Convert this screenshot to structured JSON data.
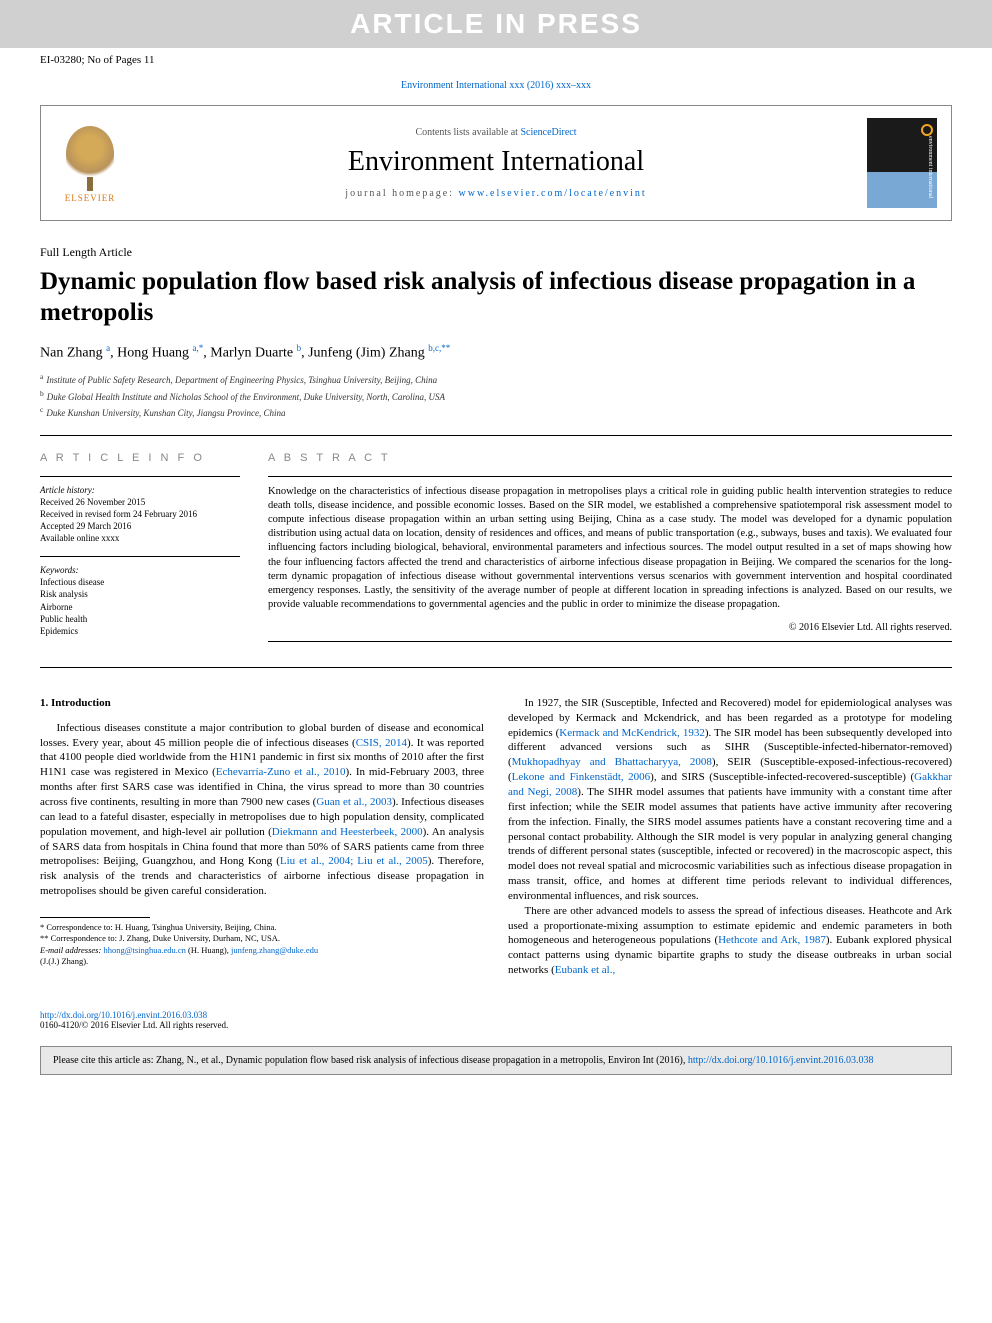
{
  "banner": "ARTICLE IN PRESS",
  "docId": "EI-03280; No of Pages 11",
  "journalRefTop": "Environment International xxx (2016) xxx–xxx",
  "header": {
    "contentsPrefix": "Contents lists available at ",
    "contentsLink": "ScienceDirect",
    "journalName": "Environment International",
    "homepagePrefix": "journal homepage: ",
    "homepageLink": "www.elsevier.com/locate/envint",
    "elsevier": "ELSEVIER",
    "coverText": "environment international"
  },
  "articleType": "Full Length Article",
  "title": "Dynamic population flow based risk analysis of infectious disease propagation in a metropolis",
  "authors": [
    {
      "name": "Nan Zhang ",
      "sup": "a"
    },
    {
      "name": ", Hong Huang ",
      "sup": "a,*"
    },
    {
      "name": ", Marlyn Duarte ",
      "sup": "b"
    },
    {
      "name": ", Junfeng (Jim) Zhang ",
      "sup": "b,c,**"
    }
  ],
  "affiliations": [
    {
      "sup": "a",
      "text": "Institute of Public Safety Research, Department of Engineering Physics, Tsinghua University, Beijing, China"
    },
    {
      "sup": "b",
      "text": "Duke Global Health Institute and Nicholas School of the Environment, Duke University, North, Carolina, USA"
    },
    {
      "sup": "c",
      "text": "Duke Kunshan University, Kunshan City, Jiangsu Province, China"
    }
  ],
  "info": {
    "heading": "A R T I C L E   I N F O",
    "historyHead": "Article history:",
    "history": [
      "Received 26 November 2015",
      "Received in revised form 24 February 2016",
      "Accepted 29 March 2016",
      "Available online xxxx"
    ],
    "keywordsHead": "Keywords:",
    "keywords": [
      "Infectious disease",
      "Risk analysis",
      "Airborne",
      "Public health",
      "Epidemics"
    ]
  },
  "abstract": {
    "heading": "A B S T R A C T",
    "text": "Knowledge on the characteristics of infectious disease propagation in metropolises plays a critical role in guiding public health intervention strategies to reduce death tolls, disease incidence, and possible economic losses. Based on the SIR model, we established a comprehensive spatiotemporal risk assessment model to compute infectious disease propagation within an urban setting using Beijing, China as a case study. The model was developed for a dynamic population distribution using actual data on location, density of residences and offices, and means of public transportation (e.g., subways, buses and taxis). We evaluated four influencing factors including biological, behavioral, environmental parameters and infectious sources. The model output resulted in a set of maps showing how the four influencing factors affected the trend and characteristics of airborne infectious disease propagation in Beijing. We compared the scenarios for the long-term dynamic propagation of infectious disease without governmental interventions versus scenarios with government intervention and hospital coordinated emergency responses. Lastly, the sensitivity of the average number of people at different location in spreading infections is analyzed. Based on our results, we provide valuable recommendations to governmental agencies and the public in order to minimize the disease propagation.",
    "copyright": "© 2016 Elsevier Ltd. All rights reserved."
  },
  "introHead": "1. Introduction",
  "col1": {
    "p1a": "Infectious diseases constitute a major contribution to global burden of disease and economical losses. Every year, about 45 million people die of infectious diseases (",
    "c1": "CSIS, 2014",
    "p1b": "). It was reported that 4100 people died worldwide from the H1N1 pandemic in first six months of 2010 after the first H1N1 case was registered in Mexico (",
    "c2": "Echevarría-Zuno et al., 2010",
    "p1c": "). In mid-February 2003, three months after first SARS case was identified in China, the virus spread to more than 30 countries across five continents, resulting in more than 7900 new cases (",
    "c3": "Guan et al., 2003",
    "p1d": "). Infectious diseases can lead to a fateful disaster, especially in metropolises due to high population density, complicated population movement, and high-level air pollution (",
    "c4": "Diekmann and Heesterbeek, 2000",
    "p1e": "). An analysis of SARS data from hospitals in China found that more than 50% of SARS patients came from three metropolises: Beijing, Guangzhou, and Hong Kong (",
    "c5": "Liu et al., 2004; Liu et al., 2005",
    "p1f": "). Therefore, risk analysis of the trends and characteristics of airborne infectious disease propagation in metropolises should be given careful consideration."
  },
  "footnotes": {
    "f1": "* Correspondence to: H. Huang, Tsinghua University, Beijing, China.",
    "f2": "** Correspondence to: J. Zhang, Duke University, Durham, NC, USA.",
    "f3pre": "E-mail addresses: ",
    "f3a": "hhong@tsinghua.edu.cn",
    "f3mid": " (H. Huang), ",
    "f3b": "junfeng.zhang@duke.edu",
    "f3post": " (J.(J.) Zhang)."
  },
  "col2": {
    "p1a": "In 1927, the SIR (Susceptible, Infected and Recovered) model for epidemiological analyses was developed by Kermack and Mckendrick, and has been regarded as a prototype for modeling epidemics (",
    "c1": "Kermack and McKendrick, 1932",
    "p1b": "). The SIR model has been subsequently developed into different advanced versions such as SIHR (Susceptible-infected-hibernator-removed) (",
    "c2": "Mukhopadhyay and Bhattacharyya, 2008",
    "p1c": "), SEIR (Susceptible-exposed-infectious-recovered) (",
    "c3": "Lekone and Finkenstädt, 2006",
    "p1d": "), and SIRS (Susceptible-infected-recovered-susceptible) (",
    "c4": "Gakkhar and Negi, 2008",
    "p1e": "). The SIHR model assumes that patients have immunity with a constant time after first infection; while the SEIR model assumes that patients have active immunity after recovering from the infection. Finally, the SIRS model assumes patients have a constant recovering time and a personal contact probability. Although the SIR model is very popular in analyzing general changing trends of different personal states (susceptible, infected or recovered) in the macroscopic aspect, this model does not reveal spatial and microcosmic variabilities such as infectious disease propagation in mass transit, office, and homes at different time periods relevant to individual differences, environmental influences, and risk sources.",
    "p2a": "There are other advanced models to assess the spread of infectious diseases. Heathcote and Ark used a proportionate-mixing assumption to estimate epidemic and endemic parameters in both homogeneous and heterogeneous populations (",
    "c5": "Hethcote and Ark, 1987",
    "p2b": "). Eubank explored physical contact patterns using dynamic bipartite graphs to study the disease outbreaks in urban social networks (",
    "c6": "Eubank et al.,"
  },
  "doi": {
    "link": "http://dx.doi.org/10.1016/j.envint.2016.03.038",
    "line2": "0160-4120/© 2016 Elsevier Ltd. All rights reserved."
  },
  "citeBox": {
    "text": "Please cite this article as: Zhang, N., et al., Dynamic population flow based risk analysis of infectious disease propagation in a metropolis, Environ Int (2016), ",
    "link": "http://dx.doi.org/10.1016/j.envint.2016.03.038"
  }
}
